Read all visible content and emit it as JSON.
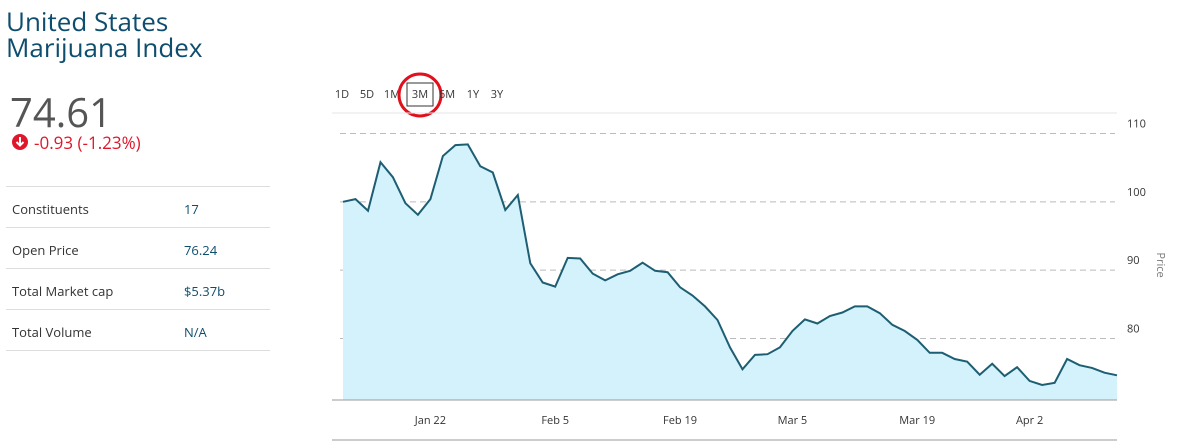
{
  "header": {
    "title": [
      "United States",
      "Marijuana Index"
    ]
  },
  "quote": {
    "price": "74.61",
    "change": "-0.93 (-1.23%)"
  },
  "stats": {
    "rows": [
      [
        "Constituents",
        "17"
      ],
      [
        "Open Price",
        "76.24"
      ],
      [
        "Total Market cap",
        "$5.37b"
      ],
      [
        "Total Volume",
        "N/A"
      ]
    ]
  },
  "ranges": {
    "options": [
      "1D",
      "5D",
      "1M",
      "3M",
      "6M",
      "1Y",
      "3Y"
    ],
    "selected": 3
  },
  "chart_data": {
    "type": "line",
    "categories": [
      null,
      null,
      null,
      null,
      null,
      null,
      null,
      "Jan 22",
      null,
      null,
      null,
      null,
      null,
      null,
      null,
      null,
      null,
      "Feb 5",
      null,
      null,
      null,
      null,
      null,
      null,
      null,
      null,
      null,
      "Feb 19",
      null,
      null,
      null,
      null,
      null,
      null,
      null,
      null,
      "Mar 5",
      null,
      null,
      null,
      null,
      null,
      null,
      null,
      null,
      null,
      "Mar 19",
      null,
      null,
      null,
      null,
      null,
      null,
      null,
      null,
      "Apr 2",
      null,
      null,
      null,
      null,
      null,
      null,
      null
    ],
    "values": [
      100.0,
      100.4,
      98.7,
      105.8,
      103.6,
      99.8,
      98.1,
      100.4,
      106.7,
      108.3,
      108.4,
      105.2,
      104.3,
      98.8,
      101.0,
      91.0,
      88.2,
      87.6,
      91.8,
      91.7,
      89.5,
      88.5,
      89.4,
      89.9,
      91.1,
      89.9,
      89.7,
      87.5,
      86.3,
      84.7,
      82.7,
      78.7,
      75.5,
      77.6,
      77.7,
      78.7,
      81.1,
      82.8,
      82.2,
      83.3,
      83.8,
      84.7,
      84.7,
      83.7,
      82.0,
      81.1,
      79.8,
      77.9,
      77.9,
      77.0,
      76.6,
      74.7,
      76.3,
      74.5,
      75.8,
      73.8,
      73.2,
      73.5,
      77.0,
      76.1,
      75.7,
      75.0,
      74.61
    ],
    "color": "#1d5e72",
    "fill_color": "#d3f2fb",
    "y_label": "Price",
    "ylim": [
      71,
      113
    ],
    "yticks": [
      80,
      90,
      100,
      110
    ],
    "grid": true
  }
}
